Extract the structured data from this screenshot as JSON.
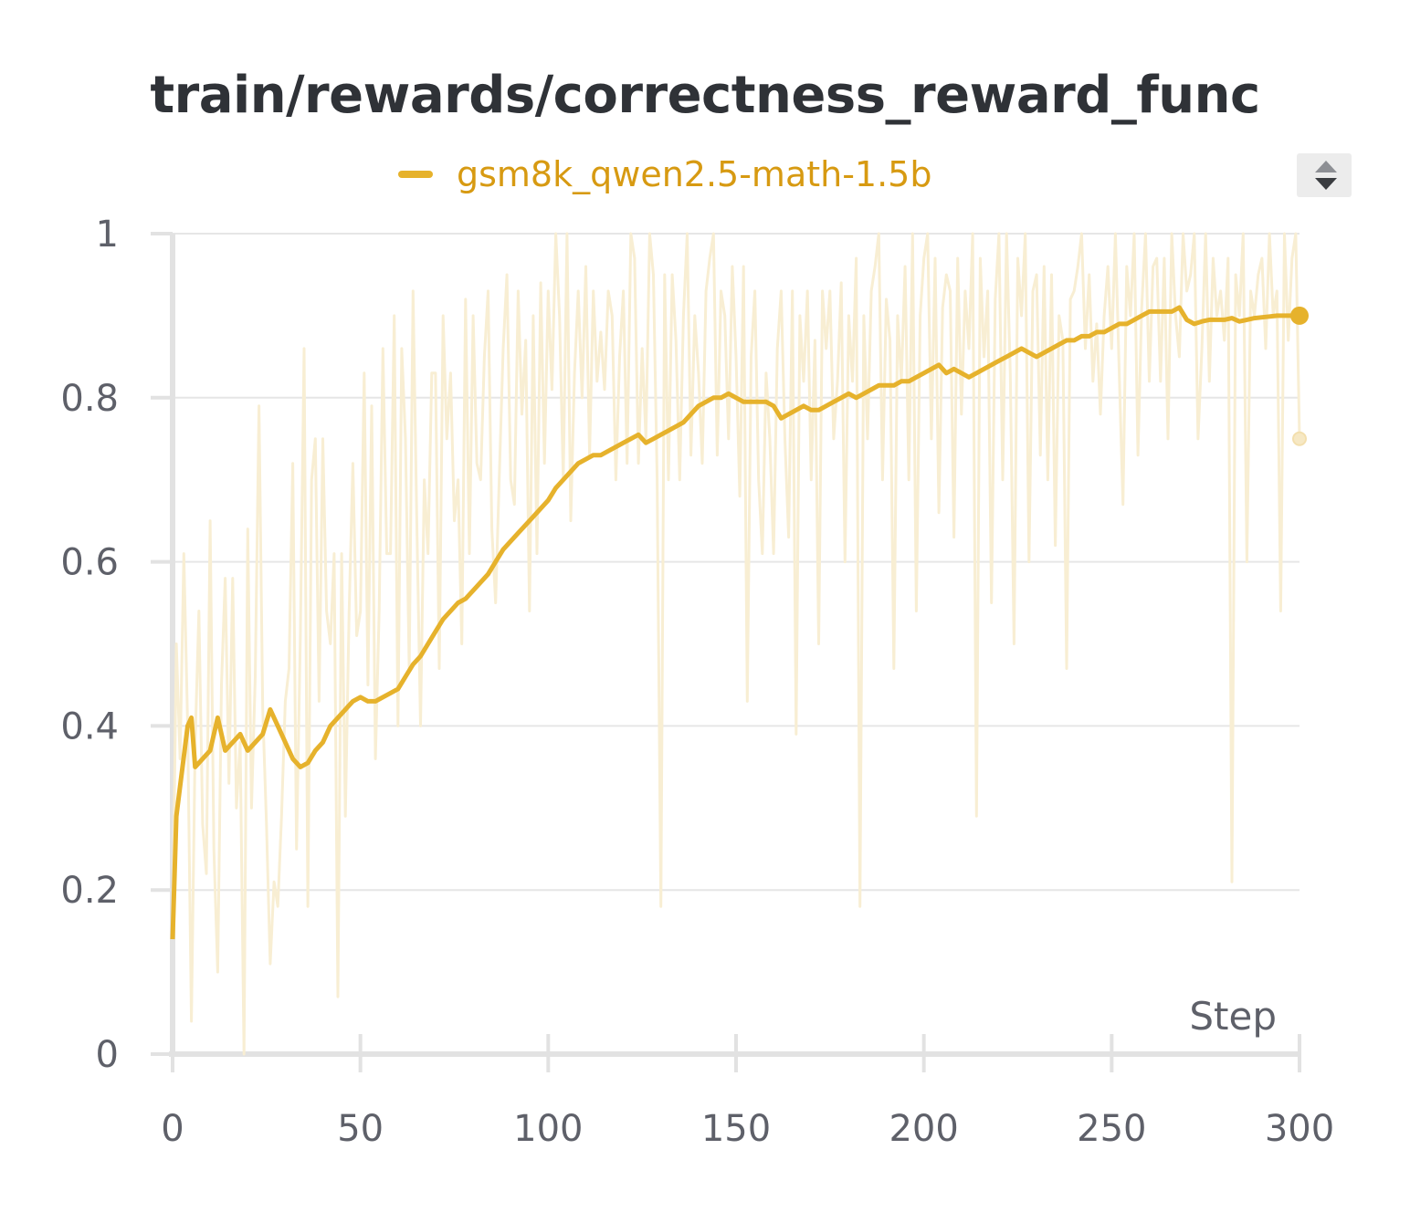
{
  "chart_data": {
    "type": "line",
    "title": "train/rewards/correctness_reward_func",
    "xlabel": "Step",
    "ylabel": "",
    "xlim": [
      0,
      300
    ],
    "ylim": [
      0,
      1
    ],
    "x_ticks": [
      "0",
      "50",
      "100",
      "150",
      "200",
      "250",
      "300"
    ],
    "y_ticks": [
      "0",
      "0.2",
      "0.4",
      "0.6",
      "0.8",
      "1"
    ],
    "grid": true,
    "legend_position": "top",
    "series": [
      {
        "name": "gsm8k_qwen2.5-math-1.5b",
        "color": "#e6b22c",
        "smoothed_x": [
          0,
          1,
          4,
          5,
          6,
          8,
          10,
          12,
          14,
          16,
          18,
          20,
          22,
          24,
          26,
          28,
          30,
          32,
          34,
          36,
          38,
          40,
          42,
          44,
          46,
          48,
          50,
          52,
          54,
          56,
          58,
          60,
          62,
          64,
          66,
          68,
          70,
          72,
          74,
          76,
          78,
          80,
          82,
          84,
          86,
          88,
          90,
          92,
          94,
          96,
          98,
          100,
          102,
          104,
          106,
          108,
          110,
          112,
          114,
          116,
          118,
          120,
          122,
          124,
          126,
          128,
          130,
          132,
          134,
          136,
          138,
          140,
          142,
          144,
          146,
          148,
          150,
          152,
          154,
          156,
          158,
          160,
          162,
          164,
          166,
          168,
          170,
          172,
          174,
          176,
          178,
          180,
          182,
          184,
          186,
          188,
          190,
          192,
          194,
          196,
          198,
          200,
          202,
          204,
          206,
          208,
          210,
          212,
          214,
          216,
          218,
          220,
          222,
          224,
          226,
          228,
          230,
          232,
          234,
          236,
          238,
          240,
          242,
          244,
          246,
          248,
          250,
          252,
          254,
          256,
          258,
          260,
          262,
          264,
          266,
          268,
          270,
          272,
          274,
          276,
          278,
          280,
          282,
          284,
          286,
          288,
          290,
          292,
          294,
          296,
          298,
          300
        ],
        "smoothed_y": [
          0.14,
          0.29,
          0.4,
          0.41,
          0.35,
          0.36,
          0.37,
          0.41,
          0.37,
          0.38,
          0.39,
          0.37,
          0.38,
          0.39,
          0.42,
          0.4,
          0.38,
          0.36,
          0.35,
          0.355,
          0.37,
          0.38,
          0.4,
          0.41,
          0.42,
          0.43,
          0.435,
          0.43,
          0.43,
          0.435,
          0.44,
          0.445,
          0.46,
          0.475,
          0.485,
          0.5,
          0.515,
          0.53,
          0.54,
          0.55,
          0.555,
          0.565,
          0.575,
          0.585,
          0.6,
          0.615,
          0.625,
          0.635,
          0.645,
          0.655,
          0.665,
          0.675,
          0.69,
          0.7,
          0.71,
          0.72,
          0.725,
          0.73,
          0.73,
          0.735,
          0.74,
          0.745,
          0.75,
          0.755,
          0.745,
          0.75,
          0.755,
          0.76,
          0.765,
          0.77,
          0.78,
          0.79,
          0.795,
          0.8,
          0.8,
          0.805,
          0.8,
          0.795,
          0.795,
          0.795,
          0.795,
          0.79,
          0.775,
          0.78,
          0.785,
          0.79,
          0.785,
          0.785,
          0.79,
          0.795,
          0.8,
          0.805,
          0.8,
          0.805,
          0.81,
          0.815,
          0.815,
          0.815,
          0.82,
          0.82,
          0.825,
          0.83,
          0.835,
          0.84,
          0.83,
          0.835,
          0.83,
          0.825,
          0.83,
          0.835,
          0.84,
          0.845,
          0.85,
          0.855,
          0.86,
          0.855,
          0.85,
          0.855,
          0.86,
          0.865,
          0.87,
          0.87,
          0.875,
          0.875,
          0.88,
          0.88,
          0.885,
          0.89,
          0.89,
          0.895,
          0.9,
          0.905,
          0.905,
          0.905,
          0.905,
          0.91,
          0.895,
          0.89,
          0.893,
          0.895,
          0.895,
          0.895,
          0.897,
          0.893,
          0.895,
          0.897,
          0.898,
          0.899,
          0.9,
          0.9,
          0.9,
          0.9
        ],
        "raw_x": [
          0,
          1,
          2,
          3,
          4,
          5,
          6,
          7,
          8,
          9,
          10,
          11,
          12,
          13,
          14,
          15,
          16,
          17,
          18,
          19,
          20,
          21,
          22,
          23,
          24,
          25,
          26,
          27,
          28,
          29,
          30,
          31,
          32,
          33,
          34,
          35,
          36,
          37,
          38,
          39,
          40,
          41,
          42,
          43,
          44,
          45,
          46,
          47,
          48,
          49,
          50,
          51,
          52,
          53,
          54,
          55,
          56,
          57,
          58,
          59,
          60,
          61,
          62,
          63,
          64,
          65,
          66,
          67,
          68,
          69,
          70,
          71,
          72,
          73,
          74,
          75,
          76,
          77,
          78,
          79,
          80,
          81,
          82,
          83,
          84,
          85,
          86,
          87,
          88,
          89,
          90,
          91,
          92,
          93,
          94,
          95,
          96,
          97,
          98,
          99,
          100,
          101,
          102,
          103,
          104,
          105,
          106,
          107,
          108,
          109,
          110,
          111,
          112,
          113,
          114,
          115,
          116,
          117,
          118,
          119,
          120,
          121,
          122,
          123,
          124,
          125,
          126,
          127,
          128,
          129,
          130,
          131,
          132,
          133,
          134,
          135,
          136,
          137,
          138,
          139,
          140,
          141,
          142,
          143,
          144,
          145,
          146,
          147,
          148,
          149,
          150,
          151,
          152,
          153,
          154,
          155,
          156,
          157,
          158,
          159,
          160,
          161,
          162,
          163,
          164,
          165,
          166,
          167,
          168,
          169,
          170,
          171,
          172,
          173,
          174,
          175,
          176,
          177,
          178,
          179,
          180,
          181,
          182,
          183,
          184,
          185,
          186,
          187,
          188,
          189,
          190,
          191,
          192,
          193,
          194,
          195,
          196,
          197,
          198,
          199,
          200,
          201,
          202,
          203,
          204,
          205,
          206,
          207,
          208,
          209,
          210,
          211,
          212,
          213,
          214,
          215,
          216,
          217,
          218,
          219,
          220,
          221,
          222,
          223,
          224,
          225,
          226,
          227,
          228,
          229,
          230,
          231,
          232,
          233,
          234,
          235,
          236,
          237,
          238,
          239,
          240,
          241,
          242,
          243,
          244,
          245,
          246,
          247,
          248,
          249,
          250,
          251,
          252,
          253,
          254,
          255,
          256,
          257,
          258,
          259,
          260,
          261,
          262,
          263,
          264,
          265,
          266,
          267,
          268,
          269,
          270,
          271,
          272,
          273,
          274,
          275,
          276,
          277,
          278,
          279,
          280,
          281,
          282,
          283,
          284,
          285,
          286,
          287,
          288,
          289,
          290,
          291,
          292,
          293,
          294,
          295,
          296,
          297,
          298,
          299,
          300
        ],
        "raw_y": [
          0.14,
          0.5,
          0.36,
          0.61,
          0.4,
          0.04,
          0.38,
          0.54,
          0.28,
          0.22,
          0.65,
          0.25,
          0.1,
          0.45,
          0.58,
          0.33,
          0.58,
          0.3,
          0.38,
          0.0,
          0.64,
          0.3,
          0.46,
          0.79,
          0.42,
          0.28,
          0.11,
          0.21,
          0.18,
          0.29,
          0.43,
          0.47,
          0.72,
          0.25,
          0.51,
          0.86,
          0.18,
          0.7,
          0.75,
          0.43,
          0.75,
          0.54,
          0.5,
          0.61,
          0.07,
          0.61,
          0.29,
          0.54,
          0.72,
          0.51,
          0.54,
          0.83,
          0.45,
          0.79,
          0.36,
          0.54,
          0.86,
          0.61,
          0.61,
          0.9,
          0.4,
          0.86,
          0.75,
          0.47,
          0.93,
          0.65,
          0.4,
          0.7,
          0.61,
          0.83,
          0.83,
          0.47,
          0.9,
          0.75,
          0.83,
          0.65,
          0.7,
          0.5,
          0.92,
          0.61,
          0.9,
          0.72,
          0.7,
          0.85,
          0.93,
          0.64,
          0.55,
          0.71,
          0.86,
          0.95,
          0.7,
          0.67,
          0.93,
          0.78,
          0.87,
          0.54,
          0.9,
          0.61,
          0.94,
          0.72,
          0.93,
          0.81,
          1.0,
          0.9,
          0.7,
          1.0,
          0.65,
          0.83,
          0.93,
          0.8,
          0.96,
          0.73,
          0.93,
          0.82,
          0.88,
          0.81,
          0.93,
          0.9,
          0.7,
          0.85,
          0.93,
          0.72,
          1.0,
          0.97,
          0.72,
          0.86,
          0.75,
          1.0,
          0.95,
          0.7,
          0.18,
          0.95,
          0.7,
          0.95,
          0.87,
          0.7,
          0.9,
          1.0,
          0.73,
          0.9,
          0.83,
          0.72,
          0.93,
          0.97,
          1.0,
          0.73,
          0.93,
          0.9,
          0.75,
          0.96,
          0.85,
          0.68,
          0.96,
          0.43,
          0.85,
          0.93,
          0.7,
          0.61,
          0.83,
          0.75,
          0.61,
          0.86,
          0.93,
          0.75,
          0.63,
          0.93,
          0.39,
          0.9,
          0.82,
          0.93,
          0.7,
          0.87,
          0.5,
          0.93,
          0.86,
          0.93,
          0.75,
          0.82,
          0.94,
          0.6,
          0.9,
          0.82,
          0.97,
          0.18,
          0.9,
          0.75,
          0.93,
          0.96,
          1.0,
          0.7,
          0.92,
          0.87,
          0.47,
          0.9,
          0.82,
          0.96,
          0.7,
          1.0,
          0.54,
          0.9,
          0.97,
          1.0,
          0.75,
          0.97,
          0.66,
          0.91,
          0.95,
          0.93,
          0.63,
          0.97,
          0.78,
          0.93,
          0.86,
          1.0,
          0.29,
          0.97,
          0.85,
          0.93,
          0.55,
          0.92,
          1.0,
          0.7,
          1.0,
          0.83,
          0.5,
          0.97,
          0.9,
          1.0,
          0.6,
          0.93,
          0.95,
          0.73,
          0.96,
          0.7,
          0.95,
          0.62,
          0.9,
          0.87,
          0.47,
          0.92,
          0.93,
          0.96,
          1.0,
          0.86,
          0.95,
          0.82,
          0.89,
          0.78,
          0.9,
          0.96,
          0.86,
          1.0,
          0.83,
          0.67,
          0.96,
          0.9,
          1.0,
          0.73,
          0.91,
          1.0,
          0.82,
          0.96,
          0.97,
          0.82,
          0.97,
          0.75,
          1.0,
          0.9,
          0.85,
          1.0,
          0.93,
          0.95,
          1.0,
          0.75,
          0.86,
          1.0,
          0.82,
          0.97,
          0.9,
          0.93,
          0.87,
          0.97,
          0.21,
          0.95,
          0.9,
          1.0,
          0.6,
          0.93,
          0.9,
          0.95,
          0.97,
          0.86,
          1.0,
          0.9,
          0.93,
          0.54,
          1.0,
          0.87,
          0.97,
          1.0,
          0.75
        ]
      }
    ]
  }
}
